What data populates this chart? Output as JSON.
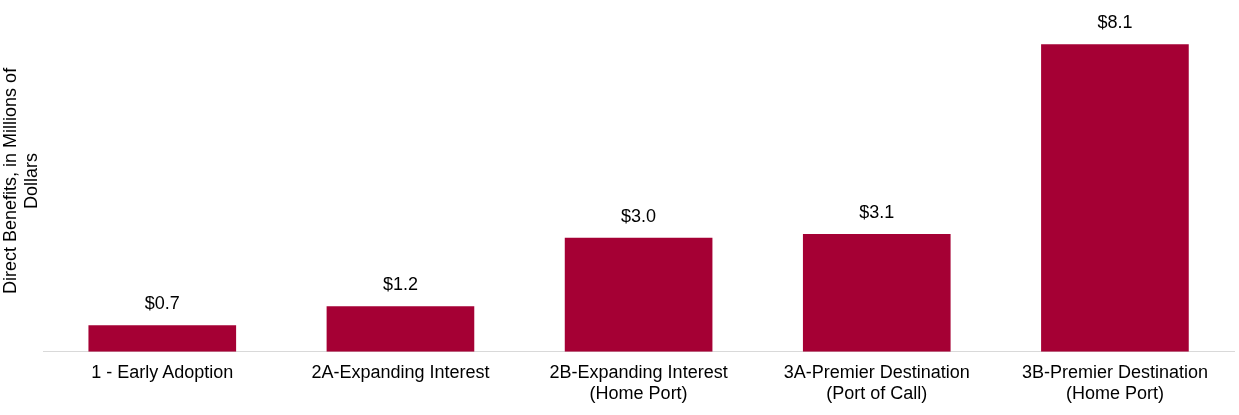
{
  "chart_data": {
    "type": "bar",
    "ylabel": "Direct Benefits, in Millions of\nDollars",
    "categories": [
      "1 - Early Adoption",
      "2A-Expanding Interest",
      "2B-Expanding Interest\n(Home Port)",
      "3A-Premier Destination\n(Port of Call)",
      "3B-Premier Destination\n(Home Port)"
    ],
    "values": [
      0.7,
      1.2,
      3.0,
      3.1,
      8.1
    ],
    "value_labels": [
      "$0.7",
      "$1.2",
      "$3.0",
      "$3.1",
      "$8.1"
    ],
    "color": "#a50034",
    "grid": false,
    "legend": false
  }
}
